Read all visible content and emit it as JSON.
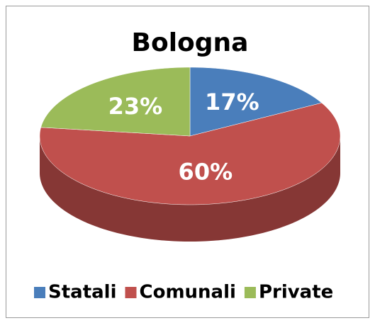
{
  "chart_data": {
    "type": "pie",
    "title": "Bologna",
    "categories": [
      "Statali",
      "Comunali",
      "Private"
    ],
    "values": [
      17,
      60,
      23
    ],
    "value_labels": [
      "17%",
      "60%",
      "23%"
    ],
    "colors": [
      "#4a7ebb",
      "#c0504d",
      "#9bbb59"
    ],
    "legend": "bottom"
  }
}
